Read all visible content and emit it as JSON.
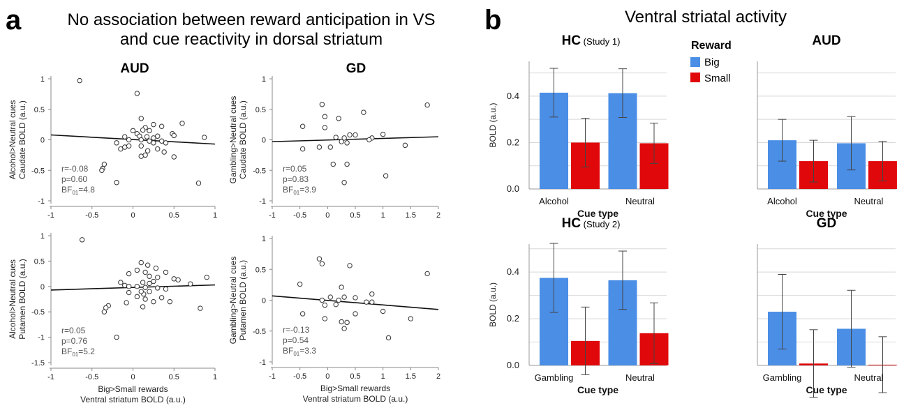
{
  "figure": {
    "panel_a_letter": "a",
    "panel_b_letter": "b",
    "panel_a_title_line1": "No association between reward anticipation in VS",
    "panel_a_title_line2": "and cue reactivity in dorsal striatum",
    "panel_b_title": "Ventral striatal activity",
    "legend_title": "Reward",
    "legend_items": [
      {
        "label": "Big",
        "color": "#4a8ee6"
      },
      {
        "label": "Small",
        "color": "#e0080a"
      }
    ],
    "colors": {
      "big": "#4a8ee6",
      "small": "#e0080a"
    }
  },
  "chart_data": [
    {
      "type": "scatter",
      "group": "AUD",
      "row": "top",
      "title": "AUD",
      "ylabel_line1": "Alcohol>Neutral cues",
      "ylabel_line2": "Caudate BOLD (a.u.)",
      "xlabel_line1": "",
      "xlabel_line2": "",
      "xlim": [
        -1,
        1
      ],
      "ylim": [
        -1,
        1
      ],
      "xticks": [
        "-1",
        "-0.5",
        "0",
        "0.5",
        "1"
      ],
      "yticks": [
        "1",
        "0.5",
        "0",
        "-0.5",
        "-1"
      ],
      "stats": {
        "r": "r=-0.08",
        "p": "p=0.60",
        "bf": "BF",
        "bf_sub": "01",
        "bf_val": "=4.8"
      },
      "fit": {
        "x": [
          -1,
          1
        ],
        "y": [
          0.08,
          -0.07
        ]
      },
      "points": [
        [
          -0.65,
          0.97
        ],
        [
          0.05,
          0.76
        ],
        [
          0.6,
          0.27
        ],
        [
          0.1,
          0.35
        ],
        [
          0.25,
          0.25
        ],
        [
          0.35,
          0.22
        ],
        [
          0.15,
          0.2
        ],
        [
          0.12,
          0.16
        ],
        [
          0.2,
          0.15
        ],
        [
          0.0,
          0.15
        ],
        [
          0.05,
          0.1
        ],
        [
          0.08,
          0.06
        ],
        [
          0.17,
          0.05
        ],
        [
          0.25,
          0.03
        ],
        [
          0.3,
          0.06
        ],
        [
          0.48,
          0.1
        ],
        [
          0.5,
          0.07
        ],
        [
          0.87,
          0.04
        ],
        [
          -0.1,
          0.05
        ],
        [
          -0.05,
          0.0
        ],
        [
          0.1,
          0.0
        ],
        [
          0.2,
          -0.02
        ],
        [
          0.25,
          -0.05
        ],
        [
          0.35,
          -0.02
        ],
        [
          0.4,
          -0.05
        ],
        [
          -0.2,
          -0.05
        ],
        [
          -0.15,
          -0.15
        ],
        [
          -0.1,
          -0.12
        ],
        [
          -0.05,
          -0.1
        ],
        [
          0.1,
          -0.1
        ],
        [
          0.18,
          -0.18
        ],
        [
          0.3,
          -0.15
        ],
        [
          0.38,
          -0.2
        ],
        [
          0.1,
          -0.27
        ],
        [
          0.15,
          -0.25
        ],
        [
          0.5,
          -0.28
        ],
        [
          -0.35,
          -0.4
        ],
        [
          -0.37,
          -0.47
        ],
        [
          -0.38,
          -0.5
        ],
        [
          -0.2,
          -0.7
        ],
        [
          0.8,
          -0.71
        ]
      ]
    },
    {
      "type": "scatter",
      "group": "GD",
      "row": "top",
      "title": "GD",
      "ylabel_line1": "Gambling>Neutral cues",
      "ylabel_line2": "Caudate BOLD (a.u.)",
      "xlabel_line1": "",
      "xlabel_line2": "",
      "xlim": [
        -1,
        2
      ],
      "ylim": [
        -1,
        1
      ],
      "xticks": [
        "-1",
        "-0.5",
        "0",
        "0.5",
        "1",
        "1.5",
        "2"
      ],
      "yticks": [
        "1",
        "0.5",
        "0",
        "-0.5",
        "-1"
      ],
      "stats": {
        "r": "r=0.05",
        "p": "p=0.83",
        "bf": "BF",
        "bf_sub": "01",
        "bf_val": "=3.9"
      },
      "fit": {
        "x": [
          -1,
          2
        ],
        "y": [
          -0.03,
          0.05
        ]
      },
      "points": [
        [
          -0.1,
          0.58
        ],
        [
          1.8,
          0.57
        ],
        [
          0.65,
          0.45
        ],
        [
          -0.05,
          0.38
        ],
        [
          0.2,
          0.35
        ],
        [
          -0.45,
          0.22
        ],
        [
          -0.05,
          0.2
        ],
        [
          1.0,
          0.09
        ],
        [
          0.4,
          0.08
        ],
        [
          0.5,
          0.08
        ],
        [
          0.15,
          0.04
        ],
        [
          0.3,
          0.03
        ],
        [
          0.8,
          0.03
        ],
        [
          0.75,
          0.0
        ],
        [
          0.25,
          -0.03
        ],
        [
          0.35,
          -0.05
        ],
        [
          -0.15,
          -0.12
        ],
        [
          0.05,
          -0.12
        ],
        [
          -0.45,
          -0.15
        ],
        [
          1.4,
          -0.09
        ],
        [
          0.1,
          -0.4
        ],
        [
          0.35,
          -0.4
        ],
        [
          1.05,
          -0.59
        ],
        [
          0.3,
          -0.7
        ]
      ]
    },
    {
      "type": "scatter",
      "group": "AUD",
      "row": "bottom",
      "title": "",
      "ylabel_line1": "Alcohol>Neutral cues",
      "ylabel_line2": "Putamen BOLD (a.u.)",
      "xlabel_line1": "Big>Small rewards",
      "xlabel_line2": "Ventral striatum BOLD (a.u.)",
      "xlim": [
        -1,
        1
      ],
      "ylim": [
        -1.5,
        1
      ],
      "xticks": [
        "-1",
        "-0.5",
        "0",
        "0.5",
        "1"
      ],
      "yticks": [
        "1",
        "0.5",
        "0",
        "-0.5",
        "-1",
        "-1.5"
      ],
      "stats": {
        "r": "r=0.05",
        "p": "p=0.76",
        "bf": "BF",
        "bf_sub": "01",
        "bf_val": "=5.2"
      },
      "fit": {
        "x": [
          -1,
          1
        ],
        "y": [
          -0.07,
          0.03
        ]
      },
      "points": [
        [
          -0.62,
          0.92
        ],
        [
          0.1,
          0.47
        ],
        [
          0.18,
          0.42
        ],
        [
          0.05,
          0.32
        ],
        [
          0.15,
          0.28
        ],
        [
          0.28,
          0.36
        ],
        [
          0.4,
          0.28
        ],
        [
          -0.05,
          0.25
        ],
        [
          0.2,
          0.2
        ],
        [
          0.3,
          0.18
        ],
        [
          0.5,
          0.15
        ],
        [
          0.55,
          0.13
        ],
        [
          0.9,
          0.18
        ],
        [
          0.7,
          0.05
        ],
        [
          0.12,
          0.08
        ],
        [
          0.2,
          0.06
        ],
        [
          0.25,
          0.1
        ],
        [
          -0.15,
          0.08
        ],
        [
          -0.1,
          0.02
        ],
        [
          -0.05,
          0.0
        ],
        [
          0.05,
          0.0
        ],
        [
          0.15,
          -0.02
        ],
        [
          0.3,
          -0.03
        ],
        [
          0.4,
          -0.05
        ],
        [
          0.2,
          -0.1
        ],
        [
          0.13,
          -0.15
        ],
        [
          0.1,
          -0.1
        ],
        [
          -0.05,
          -0.12
        ],
        [
          0.05,
          -0.2
        ],
        [
          0.15,
          -0.25
        ],
        [
          0.25,
          -0.3
        ],
        [
          0.35,
          -0.22
        ],
        [
          0.45,
          -0.3
        ],
        [
          -0.08,
          -0.32
        ],
        [
          -0.3,
          -0.38
        ],
        [
          -0.33,
          -0.42
        ],
        [
          -0.35,
          -0.5
        ],
        [
          0.12,
          -0.4
        ],
        [
          0.82,
          -0.43
        ],
        [
          -0.2,
          -1.0
        ]
      ]
    },
    {
      "type": "scatter",
      "group": "GD",
      "row": "bottom",
      "title": "",
      "ylabel_line1": "Gambling>Neutral cues",
      "ylabel_line2": "Putamen BOLD (a.u.)",
      "xlabel_line1": "Big>Small rewards",
      "xlabel_line2": "Ventral striatum BOLD (a.u.)",
      "xlim": [
        -1,
        2
      ],
      "ylim": [
        -1,
        1
      ],
      "xticks": [
        "-1",
        "-0.5",
        "0",
        "0.5",
        "1",
        "1.5",
        "2"
      ],
      "yticks": [
        "1",
        "0.5",
        "0",
        "-0.5",
        "-1"
      ],
      "stats": {
        "r": "r=-0.13",
        "p": "p=0.54",
        "bf": "BF",
        "bf_sub": "01",
        "bf_val": "=3.3"
      },
      "fit": {
        "x": [
          -1,
          2
        ],
        "y": [
          0.07,
          -0.15
        ]
      },
      "points": [
        [
          -0.15,
          0.67
        ],
        [
          -0.1,
          0.59
        ],
        [
          0.4,
          0.56
        ],
        [
          1.8,
          0.43
        ],
        [
          -0.5,
          0.26
        ],
        [
          0.25,
          0.21
        ],
        [
          0.8,
          0.1
        ],
        [
          0.05,
          0.05
        ],
        [
          0.3,
          0.05
        ],
        [
          0.5,
          0.04
        ],
        [
          -0.1,
          0.0
        ],
        [
          0.2,
          0.0
        ],
        [
          0.7,
          -0.03
        ],
        [
          0.8,
          -0.03
        ],
        [
          0.15,
          -0.07
        ],
        [
          -0.05,
          -0.08
        ],
        [
          -0.45,
          -0.22
        ],
        [
          0.5,
          -0.22
        ],
        [
          1.0,
          -0.18
        ],
        [
          1.5,
          -0.3
        ],
        [
          0.25,
          -0.35
        ],
        [
          0.35,
          -0.36
        ],
        [
          0.3,
          -0.46
        ],
        [
          -0.05,
          -0.3
        ],
        [
          1.1,
          -0.61
        ]
      ]
    },
    {
      "type": "bar",
      "group": "HC",
      "study": "(Study 1)",
      "row": "top",
      "title": "HC",
      "ylabel": "BOLD (a.u.)",
      "xlabel": "Cue type",
      "categories": [
        "Alcohol",
        "Neutral"
      ],
      "ylim": [
        0,
        0.55
      ],
      "yticks": [
        "0.4",
        "0.2",
        "0.0"
      ],
      "show_ytick_labels": true,
      "series": [
        {
          "name": "Big",
          "values": [
            0.415,
            0.413
          ],
          "err": [
            0.105,
            0.105
          ]
        },
        {
          "name": "Small",
          "values": [
            0.2,
            0.197
          ],
          "err": [
            0.105,
            0.087
          ]
        }
      ]
    },
    {
      "type": "bar",
      "group": "AUD",
      "study": "",
      "row": "top",
      "title": "AUD",
      "ylabel": "",
      "xlabel": "Cue type",
      "categories": [
        "Alcohol",
        "Neutral"
      ],
      "ylim": [
        0,
        0.55
      ],
      "yticks": [],
      "show_ytick_labels": false,
      "series": [
        {
          "name": "Big",
          "values": [
            0.21,
            0.197
          ],
          "err": [
            0.09,
            0.115
          ]
        },
        {
          "name": "Small",
          "values": [
            0.12,
            0.12
          ],
          "err": [
            0.09,
            0.085
          ]
        }
      ]
    },
    {
      "type": "bar",
      "group": "HC",
      "study": "(Study 2)",
      "row": "bottom",
      "title": "HC",
      "ylabel": "BOLD (a.u.)",
      "xlabel": "Cue type",
      "categories": [
        "Gambling",
        "Neutral"
      ],
      "ylim": [
        0,
        0.52
      ],
      "yticks": [
        "0.4",
        "0.2",
        "0.0"
      ],
      "show_ytick_labels": true,
      "series": [
        {
          "name": "Big",
          "values": [
            0.375,
            0.365
          ],
          "err": [
            0.148,
            0.125
          ]
        },
        {
          "name": "Small",
          "values": [
            0.105,
            0.138
          ],
          "err": [
            0.145,
            0.13
          ]
        }
      ]
    },
    {
      "type": "bar",
      "group": "GD",
      "study": "",
      "row": "bottom",
      "title": "GD",
      "ylabel": "",
      "xlabel": "Cue type",
      "categories": [
        "Gambling",
        "Neutral"
      ],
      "ylim": [
        0,
        0.52
      ],
      "yticks": [],
      "show_ytick_labels": false,
      "series": [
        {
          "name": "Big",
          "values": [
            0.23,
            0.157
          ],
          "err": [
            0.16,
            0.165
          ]
        },
        {
          "name": "Small",
          "values": [
            0.008,
            0.003
          ],
          "err": [
            0.145,
            0.12
          ]
        }
      ]
    }
  ]
}
